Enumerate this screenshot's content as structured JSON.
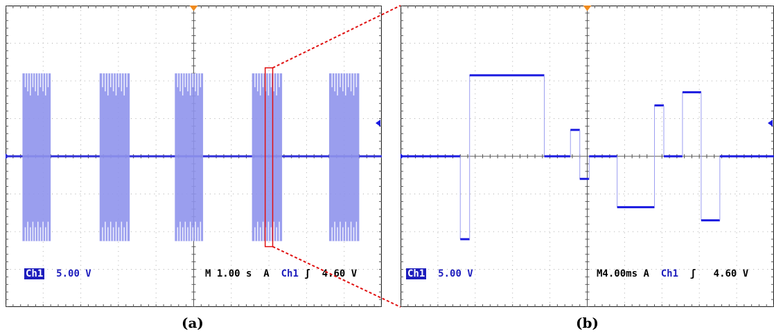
{
  "chart_data": [
    {
      "type": "oscilloscope-trace",
      "panel_label": "(a)",
      "channel": "Ch1",
      "volts_per_div": "5.00 V",
      "timebase": "M 1.00 s",
      "trigger": {
        "mode": "A",
        "source": "Ch1",
        "level": "4.60 V"
      },
      "bursts": [
        {
          "start_div": 0.45,
          "end_div": 1.2
        },
        {
          "start_div": 2.5,
          "end_div": 3.3
        },
        {
          "start_div": 4.5,
          "end_div": 5.25
        },
        {
          "start_div": 6.55,
          "end_div": 7.35
        },
        {
          "start_div": 8.6,
          "end_div": 9.4
        }
      ],
      "burst_range_div": [
        -2.25,
        2.2
      ],
      "zoom_marker_div": [
        6.9,
        7.1
      ],
      "colors": {
        "trace": "#3030d8",
        "burst": "#8f93ec",
        "zoom": "#e01010"
      }
    },
    {
      "type": "oscilloscope-trace",
      "panel_label": "(b)",
      "channel": "Ch1",
      "volts_per_div": "5.00 V",
      "timebase": "M4.00ms",
      "trigger": {
        "mode": "A",
        "source": "Ch1",
        "level": "4.60 V"
      },
      "steps": [
        {
          "x": 0.0,
          "y": 0.0
        },
        {
          "x": 1.6,
          "y": -2.2
        },
        {
          "x": 1.85,
          "y": 2.15
        },
        {
          "x": 3.85,
          "y": 0.0
        },
        {
          "x": 4.55,
          "y": 0.7
        },
        {
          "x": 4.8,
          "y": -0.6
        },
        {
          "x": 5.05,
          "y": 0.0
        },
        {
          "x": 5.8,
          "y": -1.35
        },
        {
          "x": 6.8,
          "y": 1.35
        },
        {
          "x": 7.05,
          "y": 0.0
        },
        {
          "x": 7.55,
          "y": 1.7
        },
        {
          "x": 8.05,
          "y": -1.7
        },
        {
          "x": 8.55,
          "y": 0.0
        },
        {
          "x": 10.0,
          "y": 0.0
        }
      ],
      "colors": {
        "trace": "#1a1ae0",
        "edge": "#9a9cf0"
      }
    }
  ],
  "captions": {
    "a": "(a)",
    "b": "(b)"
  }
}
